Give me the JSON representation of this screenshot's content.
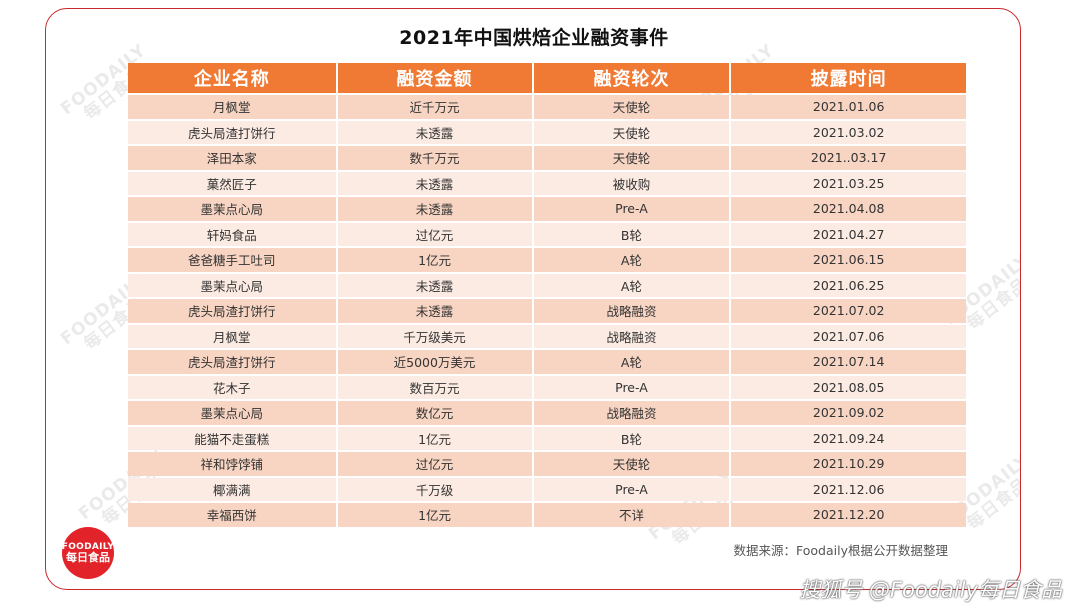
{
  "title": "2021年中国烘焙企业融资事件",
  "table": {
    "headers": [
      "企业名称",
      "融资金额",
      "融资轮次",
      "披露时间"
    ],
    "rows": [
      [
        "月枫堂",
        "近千万元",
        "天使轮",
        "2021.01.06"
      ],
      [
        "虎头局渣打饼行",
        "未透露",
        "天使轮",
        "2021.03.02"
      ],
      [
        "泽田本家",
        "数千万元",
        "天使轮",
        "2021..03.17"
      ],
      [
        "菓然匠子",
        "未透露",
        "被收购",
        "2021.03.25"
      ],
      [
        "墨茉点心局",
        "未透露",
        "Pre-A",
        "2021.04.08"
      ],
      [
        "轩妈食品",
        "过亿元",
        "B轮",
        "2021.04.27"
      ],
      [
        "爸爸糖手工吐司",
        "1亿元",
        "A轮",
        "2021.06.15"
      ],
      [
        "墨茉点心局",
        "未透露",
        "A轮",
        "2021.06.25"
      ],
      [
        "虎头局渣打饼行",
        "未透露",
        "战略融资",
        "2021.07.02"
      ],
      [
        "月枫堂",
        "千万级美元",
        "战略融资",
        "2021.07.06"
      ],
      [
        "虎头局渣打饼行",
        "近5000万美元",
        "A轮",
        "2021.07.14"
      ],
      [
        "花木子",
        "数百万元",
        "Pre-A",
        "2021.08.05"
      ],
      [
        "墨茉点心局",
        "数亿元",
        "战略融资",
        "2021.09.02"
      ],
      [
        "能猫不走蛋糕",
        "1亿元",
        "B轮",
        "2021.09.24"
      ],
      [
        "祥和饽饽铺",
        "过亿元",
        "天使轮",
        "2021.10.29"
      ],
      [
        "椰满满",
        "千万级",
        "Pre-A",
        "2021.12.06"
      ],
      [
        "幸福西饼",
        "1亿元",
        "不详",
        "2021.12.20"
      ]
    ]
  },
  "source_note": "数据来源：Foodaily根据公开数据整理",
  "logo": {
    "line1": "FOODAILY",
    "line2": "每日食品"
  },
  "watermark": {
    "line1": "FOODAILY",
    "line2": "每日食品"
  },
  "footer_caption": "搜狐号 @Foodaily每日食品",
  "colors": {
    "header_bg": "#f07a34",
    "row_odd": "#f8d5c3",
    "row_even": "#fcebe3",
    "border": "#c9282d",
    "logo_bg": "#e2232a"
  }
}
